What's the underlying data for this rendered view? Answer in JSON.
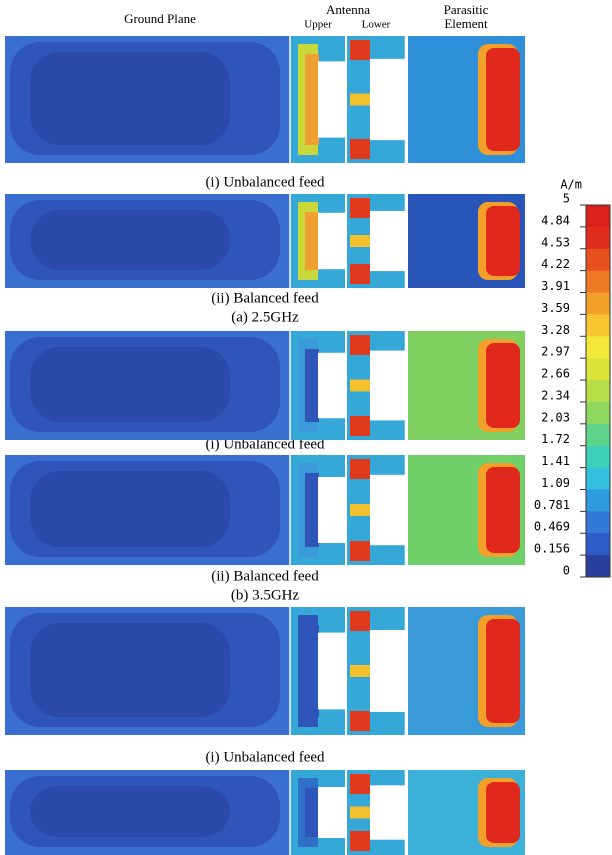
{
  "header": {
    "ground_plane": "Ground Plane",
    "antenna": "Antenna",
    "upper": "Upper",
    "lower": "Lower",
    "parasitic": "Parasitic",
    "element": "Element"
  },
  "panels": [
    {
      "caption": "(i) Unbalanced feed"
    },
    {
      "caption": "(ii) Balanced feed"
    },
    {
      "caption": "(i) Unbalanced feed"
    },
    {
      "caption": "(ii) Balanced feed"
    },
    {
      "caption": "(i) Unbalanced feed"
    }
  ],
  "groups": [
    {
      "label": "(a) 2.5GHz"
    },
    {
      "label": "(b) 3.5GHz"
    }
  ],
  "colorbar": {
    "unit": "A/m",
    "ticks": [
      5,
      4.84,
      4.53,
      4.22,
      3.91,
      3.59,
      3.28,
      2.97,
      2.66,
      2.34,
      2.03,
      1.72,
      1.41,
      1.09,
      0.781,
      0.469,
      0.156,
      0
    ]
  }
}
